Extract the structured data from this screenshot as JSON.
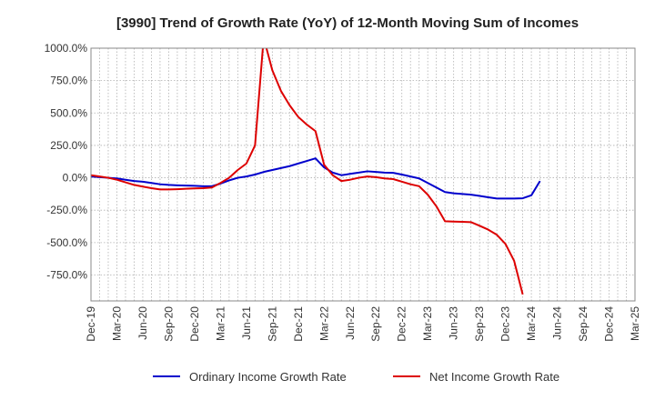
{
  "chart_data": {
    "type": "line",
    "title": "[3990]  Trend of Growth Rate (YoY) of 12-Month Moving Sum of Incomes",
    "xlabel": "",
    "ylabel": "",
    "ylim": [
      -950,
      1000
    ],
    "y_ticks": [
      1000,
      750,
      500,
      250,
      0,
      -250,
      -500,
      -750
    ],
    "y_tick_labels": [
      "1000.0%",
      "750.0%",
      "500.0%",
      "250.0%",
      "0.0%",
      "-250.0%",
      "-500.0%",
      "-750.0%"
    ],
    "x_ticks": [
      "Dec-19",
      "Mar-20",
      "Jun-20",
      "Sep-20",
      "Dec-20",
      "Mar-21",
      "Jun-21",
      "Sep-21",
      "Dec-21",
      "Mar-22",
      "Jun-22",
      "Sep-22",
      "Dec-22",
      "Mar-23",
      "Jun-23",
      "Sep-23",
      "Dec-23",
      "Mar-24",
      "Jun-24",
      "Sep-24",
      "Dec-24",
      "Mar-25"
    ],
    "x_range": [
      "2019-12",
      "2025-03"
    ],
    "grid": true,
    "legend_position": "bottom",
    "series": [
      {
        "name": "Ordinary Income Growth Rate",
        "color": "#0000cc",
        "points": [
          [
            "2019-12",
            10
          ],
          [
            "2020-01",
            5
          ],
          [
            "2020-02",
            0
          ],
          [
            "2020-03",
            -5
          ],
          [
            "2020-04",
            -15
          ],
          [
            "2020-05",
            -25
          ],
          [
            "2020-06",
            -30
          ],
          [
            "2020-07",
            -40
          ],
          [
            "2020-08",
            -50
          ],
          [
            "2020-09",
            -55
          ],
          [
            "2020-10",
            -58
          ],
          [
            "2020-11",
            -60
          ],
          [
            "2020-12",
            -62
          ],
          [
            "2021-01",
            -65
          ],
          [
            "2021-02",
            -65
          ],
          [
            "2021-03",
            -45
          ],
          [
            "2021-04",
            -20
          ],
          [
            "2021-05",
            0
          ],
          [
            "2021-06",
            10
          ],
          [
            "2021-07",
            25
          ],
          [
            "2021-08",
            45
          ],
          [
            "2021-09",
            60
          ],
          [
            "2021-10",
            75
          ],
          [
            "2021-11",
            90
          ],
          [
            "2021-12",
            110
          ],
          [
            "2022-01",
            130
          ],
          [
            "2022-02",
            150
          ],
          [
            "2022-03",
            80
          ],
          [
            "2022-04",
            40
          ],
          [
            "2022-05",
            20
          ],
          [
            "2022-06",
            30
          ],
          [
            "2022-07",
            40
          ],
          [
            "2022-08",
            50
          ],
          [
            "2022-09",
            45
          ],
          [
            "2022-10",
            40
          ],
          [
            "2022-11",
            38
          ],
          [
            "2022-12",
            25
          ],
          [
            "2023-01",
            10
          ],
          [
            "2023-02",
            -5
          ],
          [
            "2023-03",
            -40
          ],
          [
            "2023-04",
            -75
          ],
          [
            "2023-05",
            -110
          ],
          [
            "2023-06",
            -120
          ],
          [
            "2023-07",
            -125
          ],
          [
            "2023-08",
            -130
          ],
          [
            "2023-09",
            -140
          ],
          [
            "2023-10",
            -150
          ],
          [
            "2023-11",
            -160
          ],
          [
            "2023-12",
            -160
          ],
          [
            "2024-01",
            -160
          ],
          [
            "2024-02",
            -158
          ],
          [
            "2024-03",
            -135
          ],
          [
            "2024-04",
            -25
          ]
        ]
      },
      {
        "name": "Net Income Growth Rate",
        "color": "#dd0000",
        "points": [
          [
            "2019-12",
            20
          ],
          [
            "2020-01",
            10
          ],
          [
            "2020-02",
            0
          ],
          [
            "2020-03",
            -15
          ],
          [
            "2020-04",
            -35
          ],
          [
            "2020-05",
            -55
          ],
          [
            "2020-06",
            -68
          ],
          [
            "2020-07",
            -80
          ],
          [
            "2020-08",
            -90
          ],
          [
            "2020-09",
            -90
          ],
          [
            "2020-10",
            -88
          ],
          [
            "2020-11",
            -85
          ],
          [
            "2020-12",
            -82
          ],
          [
            "2021-01",
            -80
          ],
          [
            "2021-02",
            -75
          ],
          [
            "2021-03",
            -40
          ],
          [
            "2021-04",
            0
          ],
          [
            "2021-05",
            60
          ],
          [
            "2021-06",
            110
          ],
          [
            "2021-07",
            250
          ],
          [
            "2021-08",
            1080
          ],
          [
            "2021-09",
            830
          ],
          [
            "2021-10",
            670
          ],
          [
            "2021-11",
            560
          ],
          [
            "2021-12",
            470
          ],
          [
            "2022-01",
            410
          ],
          [
            "2022-02",
            360
          ],
          [
            "2022-03",
            100
          ],
          [
            "2022-04",
            20
          ],
          [
            "2022-05",
            -25
          ],
          [
            "2022-06",
            -15
          ],
          [
            "2022-07",
            0
          ],
          [
            "2022-08",
            10
          ],
          [
            "2022-09",
            5
          ],
          [
            "2022-10",
            -5
          ],
          [
            "2022-11",
            -10
          ],
          [
            "2022-12",
            -30
          ],
          [
            "2023-01",
            -50
          ],
          [
            "2023-02",
            -65
          ],
          [
            "2023-03",
            -130
          ],
          [
            "2023-04",
            -220
          ],
          [
            "2023-05",
            -335
          ],
          [
            "2023-06",
            -338
          ],
          [
            "2023-07",
            -340
          ],
          [
            "2023-08",
            -342
          ],
          [
            "2023-09",
            -370
          ],
          [
            "2023-10",
            -400
          ],
          [
            "2023-11",
            -440
          ],
          [
            "2023-12",
            -510
          ],
          [
            "2024-01",
            -640
          ],
          [
            "2024-02",
            -900
          ]
        ]
      }
    ]
  }
}
